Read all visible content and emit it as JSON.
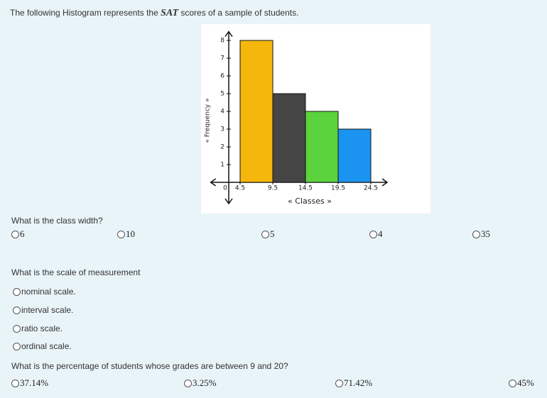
{
  "intro": {
    "before": "The following Histogram represents the ",
    "math": "SAT",
    "after": " scores of a sample of students."
  },
  "chart_data": {
    "type": "histogram",
    "bins": [
      4.5,
      9.5,
      14.5,
      19.5,
      24.5
    ],
    "values": [
      8,
      5,
      4,
      3
    ],
    "colors": [
      "#f5b70c",
      "#454545",
      "#5ad33c",
      "#1b93f0"
    ],
    "xlabel": "« Classes »",
    "ylabel": "« Frequency »",
    "xlim": [
      0,
      27
    ],
    "ylim": [
      0,
      8.5
    ],
    "yticks": [
      0,
      1,
      2,
      3,
      4,
      5,
      6,
      7,
      8
    ]
  },
  "questions": [
    {
      "text": "What is the class width?",
      "options": [
        "6",
        "10",
        "5",
        "4",
        "35"
      ]
    },
    {
      "text": "What is the scale of measurement",
      "options": [
        "nominal scale.",
        "interval scale.",
        "ratio scale.",
        "ordinal scale."
      ]
    },
    {
      "text": "What is the percentage of students whose grades are between 9 and 20?",
      "options": [
        "37.14%",
        "3.25%",
        "71.42%",
        "45%"
      ]
    }
  ]
}
